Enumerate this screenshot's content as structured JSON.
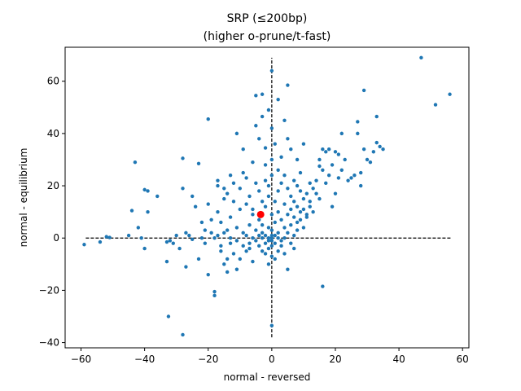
{
  "chart_data": {
    "type": "scatter",
    "title": "SRP (≤200bp)",
    "subtitle": "(higher o-prune/t-fast)",
    "xlabel": "normal - reversed",
    "ylabel": "normal - equilibrium",
    "xlim": [
      -65,
      62
    ],
    "ylim": [
      -42,
      73
    ],
    "xticks": [
      -60,
      -40,
      -20,
      0,
      20,
      40,
      60
    ],
    "yticks": [
      -40,
      -20,
      0,
      20,
      40,
      60
    ],
    "grid": false,
    "legend": "none",
    "reference_lines": {
      "horizontal": {
        "y": 0,
        "x_range": [
          -58.5,
          56.5
        ],
        "style": "dashed"
      },
      "vertical": {
        "x": 0,
        "y_range": [
          -38,
          69
        ],
        "style": "dashed"
      }
    },
    "colors": {
      "points": "#1f77b4",
      "highlight": "#ff0000",
      "reference": "#000000"
    },
    "highlight_point": {
      "x": -3.5,
      "y": 9
    },
    "series": [
      {
        "points": [
          [
            -59,
            -2.5
          ],
          [
            -54,
            -1.5
          ],
          [
            -52,
            0.5
          ],
          [
            -51,
            0.2
          ],
          [
            -45,
            1
          ],
          [
            -44,
            10.5
          ],
          [
            -43,
            29
          ],
          [
            -42,
            4
          ],
          [
            -41,
            0
          ],
          [
            -40,
            18.5
          ],
          [
            -39,
            18
          ],
          [
            -39,
            10
          ],
          [
            -40,
            -4
          ],
          [
            -36,
            16
          ],
          [
            -33,
            -9
          ],
          [
            -33,
            -1.5
          ],
          [
            -32.5,
            -30
          ],
          [
            -32,
            -1
          ],
          [
            -31,
            -2
          ],
          [
            -30,
            1
          ],
          [
            -29,
            -4
          ],
          [
            -28,
            30.5
          ],
          [
            -28,
            19
          ],
          [
            -28,
            -37
          ],
          [
            -27,
            2
          ],
          [
            -27,
            -11
          ],
          [
            -26,
            1
          ],
          [
            -25,
            -0.5
          ],
          [
            -25,
            16
          ],
          [
            -24,
            12
          ],
          [
            -23,
            28.5
          ],
          [
            -23,
            -8
          ],
          [
            -22,
            0
          ],
          [
            -22,
            6
          ],
          [
            -21,
            3
          ],
          [
            -21,
            -2
          ],
          [
            -20,
            45.5
          ],
          [
            -20,
            13
          ],
          [
            -20,
            -14
          ],
          [
            -19,
            2
          ],
          [
            -19,
            7
          ],
          [
            -18,
            0
          ],
          [
            -18,
            -22
          ],
          [
            -18,
            -20.5
          ],
          [
            -17,
            22
          ],
          [
            -17,
            20
          ],
          [
            -17,
            10
          ],
          [
            -17,
            1
          ],
          [
            -16,
            -5
          ],
          [
            -16,
            6
          ],
          [
            -16,
            -3
          ],
          [
            -15,
            15
          ],
          [
            -15,
            19
          ],
          [
            -15,
            2
          ],
          [
            -15,
            -10
          ],
          [
            -14,
            -8
          ],
          [
            -14,
            -13
          ],
          [
            -14,
            3
          ],
          [
            -14,
            17
          ],
          [
            -13,
            24
          ],
          [
            -13,
            0
          ],
          [
            -13,
            8
          ],
          [
            -13,
            -2
          ],
          [
            -12,
            14
          ],
          [
            -12,
            21
          ],
          [
            -12,
            -6
          ],
          [
            -11,
            40
          ],
          [
            -11,
            4
          ],
          [
            -11,
            -1
          ],
          [
            -11,
            -12
          ],
          [
            -10,
            11
          ],
          [
            -10,
            19
          ],
          [
            -10,
            -8
          ],
          [
            -9,
            34
          ],
          [
            -9,
            2
          ],
          [
            -9,
            25
          ],
          [
            -9,
            -3
          ],
          [
            -8,
            13
          ],
          [
            -8,
            1
          ],
          [
            -8,
            23
          ],
          [
            -8,
            -5
          ],
          [
            -7,
            5
          ],
          [
            -7,
            16
          ],
          [
            -7,
            -2
          ],
          [
            -7,
            -4
          ],
          [
            -6,
            29
          ],
          [
            -6,
            11
          ],
          [
            -6,
            9
          ],
          [
            -6,
            0
          ],
          [
            -6,
            -9
          ],
          [
            -5,
            54.5
          ],
          [
            -5,
            43
          ],
          [
            -5,
            21
          ],
          [
            -5,
            3
          ],
          [
            -5,
            -1
          ],
          [
            -4,
            38
          ],
          [
            -4,
            18
          ],
          [
            -4,
            7
          ],
          [
            -4,
            -3
          ],
          [
            -4,
            1
          ],
          [
            -3,
            55
          ],
          [
            -3,
            46.5
          ],
          [
            -3,
            14
          ],
          [
            -3,
            5
          ],
          [
            -3,
            2
          ],
          [
            -3,
            0
          ],
          [
            -3,
            -5
          ],
          [
            -2,
            34.5
          ],
          [
            -2,
            28
          ],
          [
            -2,
            22
          ],
          [
            -2,
            12
          ],
          [
            -2,
            1
          ],
          [
            -2,
            -2
          ],
          [
            -2,
            -6
          ],
          [
            -1,
            49
          ],
          [
            -1,
            20
          ],
          [
            -1,
            16
          ],
          [
            -1,
            4
          ],
          [
            -1,
            0
          ],
          [
            -1,
            -1
          ],
          [
            -1,
            -4
          ],
          [
            -1,
            -10
          ],
          [
            0,
            64
          ],
          [
            0,
            42
          ],
          [
            0,
            30
          ],
          [
            0,
            24
          ],
          [
            0,
            9
          ],
          [
            0,
            3
          ],
          [
            0,
            1
          ],
          [
            0,
            0
          ],
          [
            0,
            -1
          ],
          [
            0,
            -3
          ],
          [
            0,
            -7
          ],
          [
            0,
            -33.5
          ],
          [
            1,
            36
          ],
          [
            1,
            14
          ],
          [
            1,
            6
          ],
          [
            1,
            1
          ],
          [
            1,
            -2
          ],
          [
            1,
            -8
          ],
          [
            2,
            53
          ],
          [
            2,
            26
          ],
          [
            2,
            18
          ],
          [
            2,
            10
          ],
          [
            2,
            2
          ],
          [
            2,
            0
          ],
          [
            2,
            -5
          ],
          [
            3,
            31
          ],
          [
            3,
            21
          ],
          [
            3,
            7
          ],
          [
            3,
            -1
          ],
          [
            3,
            -3
          ],
          [
            4,
            45
          ],
          [
            4,
            24
          ],
          [
            4,
            13
          ],
          [
            4,
            4
          ],
          [
            4,
            0
          ],
          [
            4,
            -6
          ],
          [
            5,
            58.5
          ],
          [
            5,
            38
          ],
          [
            5,
            19
          ],
          [
            5,
            9
          ],
          [
            5,
            2
          ],
          [
            5,
            -12
          ],
          [
            6,
            34
          ],
          [
            6,
            16
          ],
          [
            6,
            11
          ],
          [
            6,
            5
          ],
          [
            6,
            -2
          ],
          [
            7,
            22
          ],
          [
            7,
            14
          ],
          [
            7,
            8
          ],
          [
            7,
            1
          ],
          [
            7,
            -4
          ],
          [
            8,
            30
          ],
          [
            8,
            20
          ],
          [
            8,
            12
          ],
          [
            8,
            6
          ],
          [
            8,
            3
          ],
          [
            9,
            25
          ],
          [
            9,
            18
          ],
          [
            9,
            10
          ],
          [
            9,
            7
          ],
          [
            10,
            36
          ],
          [
            10,
            15
          ],
          [
            10,
            11
          ],
          [
            10,
            4
          ],
          [
            11,
            17
          ],
          [
            11,
            9
          ],
          [
            11,
            8
          ],
          [
            12,
            21
          ],
          [
            12,
            14
          ],
          [
            12,
            12
          ],
          [
            13,
            19
          ],
          [
            13,
            10
          ],
          [
            14,
            22
          ],
          [
            14,
            17
          ],
          [
            15,
            30
          ],
          [
            15,
            27.5
          ],
          [
            15,
            15
          ],
          [
            16,
            34
          ],
          [
            16,
            -18.5
          ],
          [
            16,
            26
          ],
          [
            17,
            33
          ],
          [
            17,
            21
          ],
          [
            18,
            34
          ],
          [
            18,
            24
          ],
          [
            19,
            12
          ],
          [
            19,
            28
          ],
          [
            20,
            33
          ],
          [
            20,
            17
          ],
          [
            21,
            23
          ],
          [
            21,
            32
          ],
          [
            22,
            40
          ],
          [
            22,
            26
          ],
          [
            23,
            30
          ],
          [
            24,
            22
          ],
          [
            25,
            23
          ],
          [
            26,
            24
          ],
          [
            27,
            44.5
          ],
          [
            27,
            40
          ],
          [
            28,
            25
          ],
          [
            28,
            20
          ],
          [
            29,
            56.5
          ],
          [
            29,
            34
          ],
          [
            30,
            30
          ],
          [
            31,
            29
          ],
          [
            32,
            33
          ],
          [
            33,
            36.5
          ],
          [
            33,
            46.5
          ],
          [
            34,
            35
          ],
          [
            35,
            34
          ],
          [
            47,
            69
          ],
          [
            51.5,
            51
          ],
          [
            56,
            55
          ]
        ]
      }
    ]
  }
}
